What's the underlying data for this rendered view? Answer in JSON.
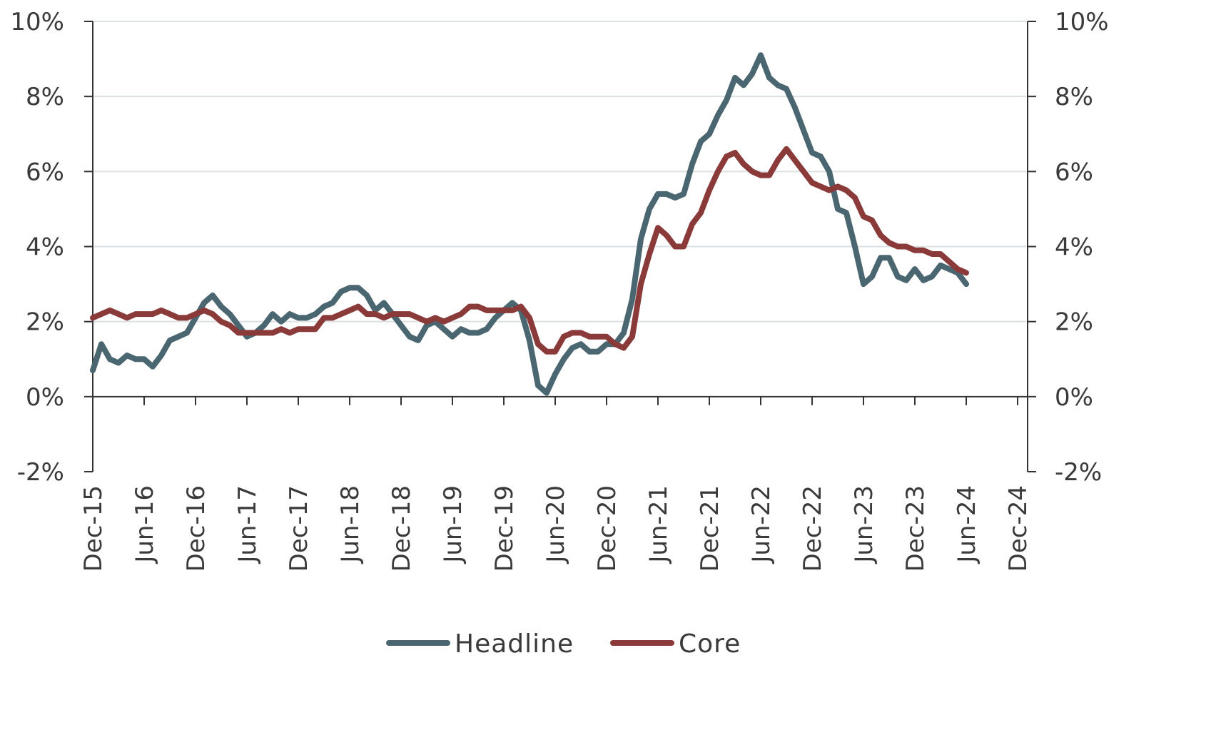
{
  "chart_data": {
    "type": "line",
    "title": "",
    "xlabel": "",
    "ylabel": "",
    "x_start": "Dec-15",
    "x_tick_labels": [
      "Dec-15",
      "Jun-16",
      "Dec-16",
      "Jun-17",
      "Dec-17",
      "Jun-18",
      "Dec-18",
      "Jun-19",
      "Dec-19",
      "Jun-20",
      "Dec-20",
      "Jun-21",
      "Dec-21",
      "Jun-22",
      "Dec-22",
      "Jun-23",
      "Dec-23",
      "Jun-24",
      "Dec-24"
    ],
    "xlim": [
      "Dec-15",
      "Dec-24"
    ],
    "y_tick_labels": [
      "-2%",
      "0%",
      "2%",
      "4%",
      "6%",
      "8%",
      "10%"
    ],
    "y_ticks": [
      -2,
      0,
      2,
      4,
      6,
      8,
      10
    ],
    "ylim": [
      -2,
      10
    ],
    "right_axis_mirrors_left": true,
    "grid": true,
    "legend_position": "bottom",
    "series": [
      {
        "name": "Headline",
        "color": "#4a6670",
        "values": [
          0.7,
          1.4,
          1.0,
          0.9,
          1.1,
          1.0,
          1.0,
          0.8,
          1.1,
          1.5,
          1.6,
          1.7,
          2.1,
          2.5,
          2.7,
          2.4,
          2.2,
          1.9,
          1.6,
          1.7,
          1.9,
          2.2,
          2.0,
          2.2,
          2.1,
          2.1,
          2.2,
          2.4,
          2.5,
          2.8,
          2.9,
          2.9,
          2.7,
          2.3,
          2.5,
          2.2,
          1.9,
          1.6,
          1.5,
          1.9,
          2.0,
          1.8,
          1.6,
          1.8,
          1.7,
          1.7,
          1.8,
          2.1,
          2.3,
          2.5,
          2.3,
          1.5,
          0.3,
          0.1,
          0.6,
          1.0,
          1.3,
          1.4,
          1.2,
          1.2,
          1.4,
          1.4,
          1.7,
          2.6,
          4.2,
          5.0,
          5.4,
          5.4,
          5.3,
          5.4,
          6.2,
          6.8,
          7.0,
          7.5,
          7.9,
          8.5,
          8.3,
          8.6,
          9.1,
          8.5,
          8.3,
          8.2,
          7.7,
          7.1,
          6.5,
          6.4,
          6.0,
          5.0,
          4.9,
          4.0,
          3.0,
          3.2,
          3.7,
          3.7,
          3.2,
          3.1,
          3.4,
          3.1,
          3.2,
          3.5,
          3.4,
          3.3,
          3.0
        ]
      },
      {
        "name": "Core",
        "color": "#8b3a3a",
        "values": [
          2.1,
          2.2,
          2.3,
          2.2,
          2.1,
          2.2,
          2.2,
          2.2,
          2.3,
          2.2,
          2.1,
          2.1,
          2.2,
          2.3,
          2.2,
          2.0,
          1.9,
          1.7,
          1.7,
          1.7,
          1.7,
          1.7,
          1.8,
          1.7,
          1.8,
          1.8,
          1.8,
          2.1,
          2.1,
          2.2,
          2.3,
          2.4,
          2.2,
          2.2,
          2.1,
          2.2,
          2.2,
          2.2,
          2.1,
          2.0,
          2.1,
          2.0,
          2.1,
          2.2,
          2.4,
          2.4,
          2.3,
          2.3,
          2.3,
          2.3,
          2.4,
          2.1,
          1.4,
          1.2,
          1.2,
          1.6,
          1.7,
          1.7,
          1.6,
          1.6,
          1.6,
          1.4,
          1.3,
          1.6,
          3.0,
          3.8,
          4.5,
          4.3,
          4.0,
          4.0,
          4.6,
          4.9,
          5.5,
          6.0,
          6.4,
          6.5,
          6.2,
          6.0,
          5.9,
          5.9,
          6.3,
          6.6,
          6.3,
          6.0,
          5.7,
          5.6,
          5.5,
          5.6,
          5.5,
          5.3,
          4.8,
          4.7,
          4.3,
          4.1,
          4.0,
          4.0,
          3.9,
          3.9,
          3.8,
          3.8,
          3.6,
          3.4,
          3.3
        ]
      }
    ]
  }
}
